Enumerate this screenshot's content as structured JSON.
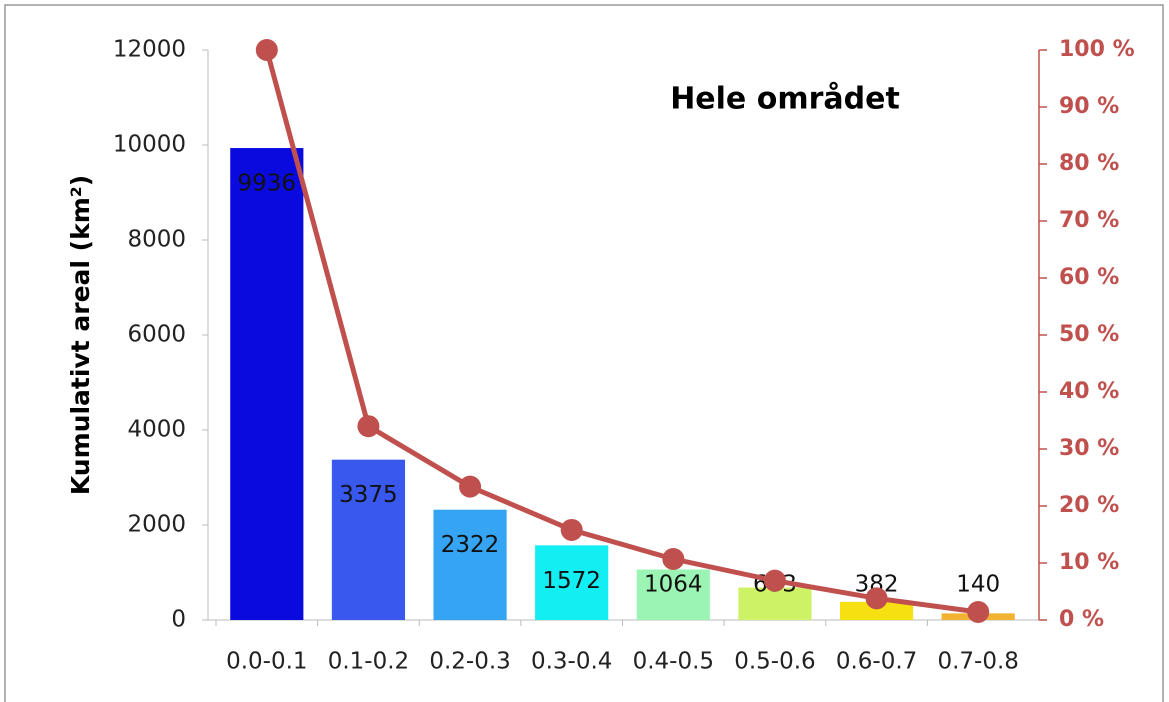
{
  "chart_data": {
    "type": "bar",
    "title": "Hele området",
    "y_label": "Kumulativt areal (km²)",
    "categories": [
      "0.0-0.1",
      "0.1-0.2",
      "0.2-0.3",
      "0.3-0.4",
      "0.4-0.5",
      "0.5-0.6",
      "0.6-0.7",
      "0.7-0.8"
    ],
    "values": [
      9936,
      3375,
      2322,
      1572,
      1064,
      683,
      382,
      140
    ],
    "colors": [
      "#0a0ade",
      "#3858ee",
      "#35a4f2",
      "#12eef2",
      "#9cf4b4",
      "#cdf266",
      "#f6e012",
      "#f2b232"
    ],
    "ylim": [
      0,
      12000
    ],
    "yticks": [
      0,
      2000,
      4000,
      6000,
      8000,
      10000,
      12000
    ],
    "series": [
      {
        "type": "line",
        "axis": "y2",
        "color": "#c0504d",
        "values": [
          100,
          34,
          23.4,
          15.8,
          10.7,
          6.9,
          3.8,
          1.4
        ]
      }
    ],
    "y2lim": [
      0,
      100
    ],
    "y2ticks": [
      {
        "value": 0,
        "label": "0 %"
      },
      {
        "value": 10,
        "label": "10 %"
      },
      {
        "value": 20,
        "label": "20 %"
      },
      {
        "value": 30,
        "label": "30 %"
      },
      {
        "value": 40,
        "label": "40 %"
      },
      {
        "value": 50,
        "label": "50 %"
      },
      {
        "value": 60,
        "label": "60 %"
      },
      {
        "value": 70,
        "label": "70 %"
      },
      {
        "value": 80,
        "label": "80 %"
      },
      {
        "value": 90,
        "label": "90 %"
      },
      {
        "value": 100,
        "label": "100 %"
      }
    ]
  }
}
